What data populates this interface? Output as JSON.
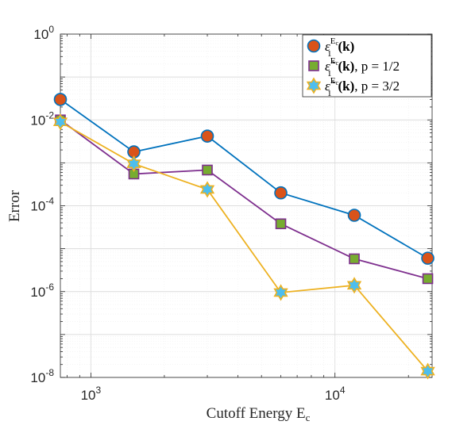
{
  "chart_data": {
    "type": "line",
    "x_scale": "log",
    "y_scale": "log",
    "xlabel": "Cutoff Energy E",
    "xlabel_subscript": "c",
    "ylabel": "Error",
    "xlim": [
      750,
      25000
    ],
    "ylim": [
      1e-08,
      1
    ],
    "grid": true,
    "legend_position": "top-right",
    "x": [
      750,
      1500,
      3000,
      6000,
      12000,
      24000
    ],
    "x_ticks": [
      {
        "base": "10",
        "exp": "3",
        "value": 1000
      },
      {
        "base": "10",
        "exp": "4",
        "value": 10000
      }
    ],
    "y_ticks": [
      {
        "base": "10",
        "exp": "0",
        "value": 1
      },
      {
        "base": "10",
        "exp": "-2",
        "value": 0.01
      },
      {
        "base": "10",
        "exp": "-4",
        "value": 0.0001
      },
      {
        "base": "10",
        "exp": "-6",
        "value": 1e-06
      },
      {
        "base": "10",
        "exp": "-8",
        "value": 1e-08
      }
    ],
    "series": [
      {
        "legend": "ε₁^{E_c}(k)",
        "legend_main": "ε",
        "legend_sub": "1",
        "legend_sup": "E",
        "legend_sup_sub": "c",
        "legend_arg": "(k)",
        "legend_suffix": "",
        "marker": "circle",
        "line_color": "#0072BD",
        "marker_color": "#D95319",
        "values": [
          0.03,
          0.0018,
          0.0042,
          0.0002,
          6e-05,
          6e-06
        ]
      },
      {
        "legend": "ε̃₁^{E_c}(k), p = 1/2",
        "legend_main": "ε̃",
        "legend_sub": "1",
        "legend_sup": "E",
        "legend_sup_sub": "c",
        "legend_arg": "(k)",
        "legend_suffix": ", p = 1/2",
        "marker": "square",
        "line_color": "#7E2F8E",
        "marker_color": "#77AC30",
        "values": [
          0.01,
          0.00055,
          0.00068,
          3.8e-05,
          5.8e-06,
          2e-06
        ]
      },
      {
        "legend": "ε̃₁^{E_c}(k), p = 3/2",
        "legend_main": "ε̃",
        "legend_sub": "1",
        "legend_sup": "E",
        "legend_sup_sub": "c",
        "legend_arg": "(k)",
        "legend_suffix": ", p = 3/2",
        "marker": "hexagram",
        "line_color": "#EDB120",
        "marker_color": "#4DBEEE",
        "values": [
          0.009,
          0.00095,
          0.00024,
          9.5e-07,
          1.4e-06,
          1.4e-08
        ]
      }
    ]
  }
}
